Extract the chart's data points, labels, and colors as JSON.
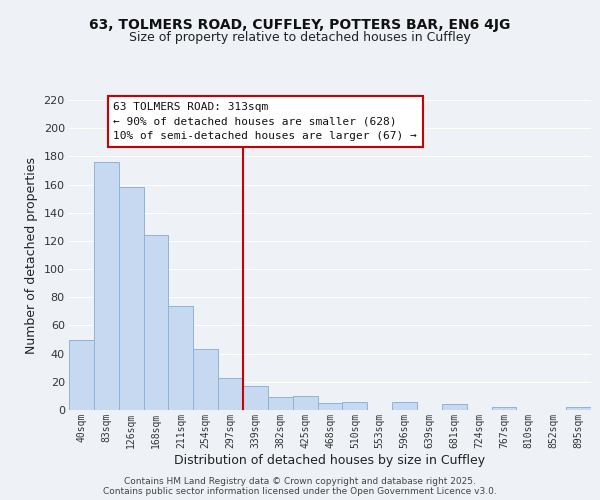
{
  "title1": "63, TOLMERS ROAD, CUFFLEY, POTTERS BAR, EN6 4JG",
  "title2": "Size of property relative to detached houses in Cuffley",
  "xlabel": "Distribution of detached houses by size in Cuffley",
  "ylabel": "Number of detached properties",
  "bar_labels": [
    "40sqm",
    "83sqm",
    "126sqm",
    "168sqm",
    "211sqm",
    "254sqm",
    "297sqm",
    "339sqm",
    "382sqm",
    "425sqm",
    "468sqm",
    "510sqm",
    "553sqm",
    "596sqm",
    "639sqm",
    "681sqm",
    "724sqm",
    "767sqm",
    "810sqm",
    "852sqm",
    "895sqm"
  ],
  "bar_values": [
    50,
    176,
    158,
    124,
    74,
    43,
    23,
    17,
    9,
    10,
    5,
    6,
    0,
    6,
    0,
    4,
    0,
    2,
    0,
    0,
    2
  ],
  "bar_color": "#c6d9f0",
  "bar_edgecolor": "#8fb4d9",
  "vline_x_index": 6,
  "vline_color": "#cc0000",
  "annotation_title": "63 TOLMERS ROAD: 313sqm",
  "annotation_line1": "← 90% of detached houses are smaller (628)",
  "annotation_line2": "10% of semi-detached houses are larger (67) →",
  "ylim": [
    0,
    220
  ],
  "yticks": [
    0,
    20,
    40,
    60,
    80,
    100,
    120,
    140,
    160,
    180,
    200,
    220
  ],
  "background_color": "#eef2f7",
  "grid_color": "#ffffff",
  "footer1": "Contains HM Land Registry data © Crown copyright and database right 2025.",
  "footer2": "Contains public sector information licensed under the Open Government Licence v3.0."
}
